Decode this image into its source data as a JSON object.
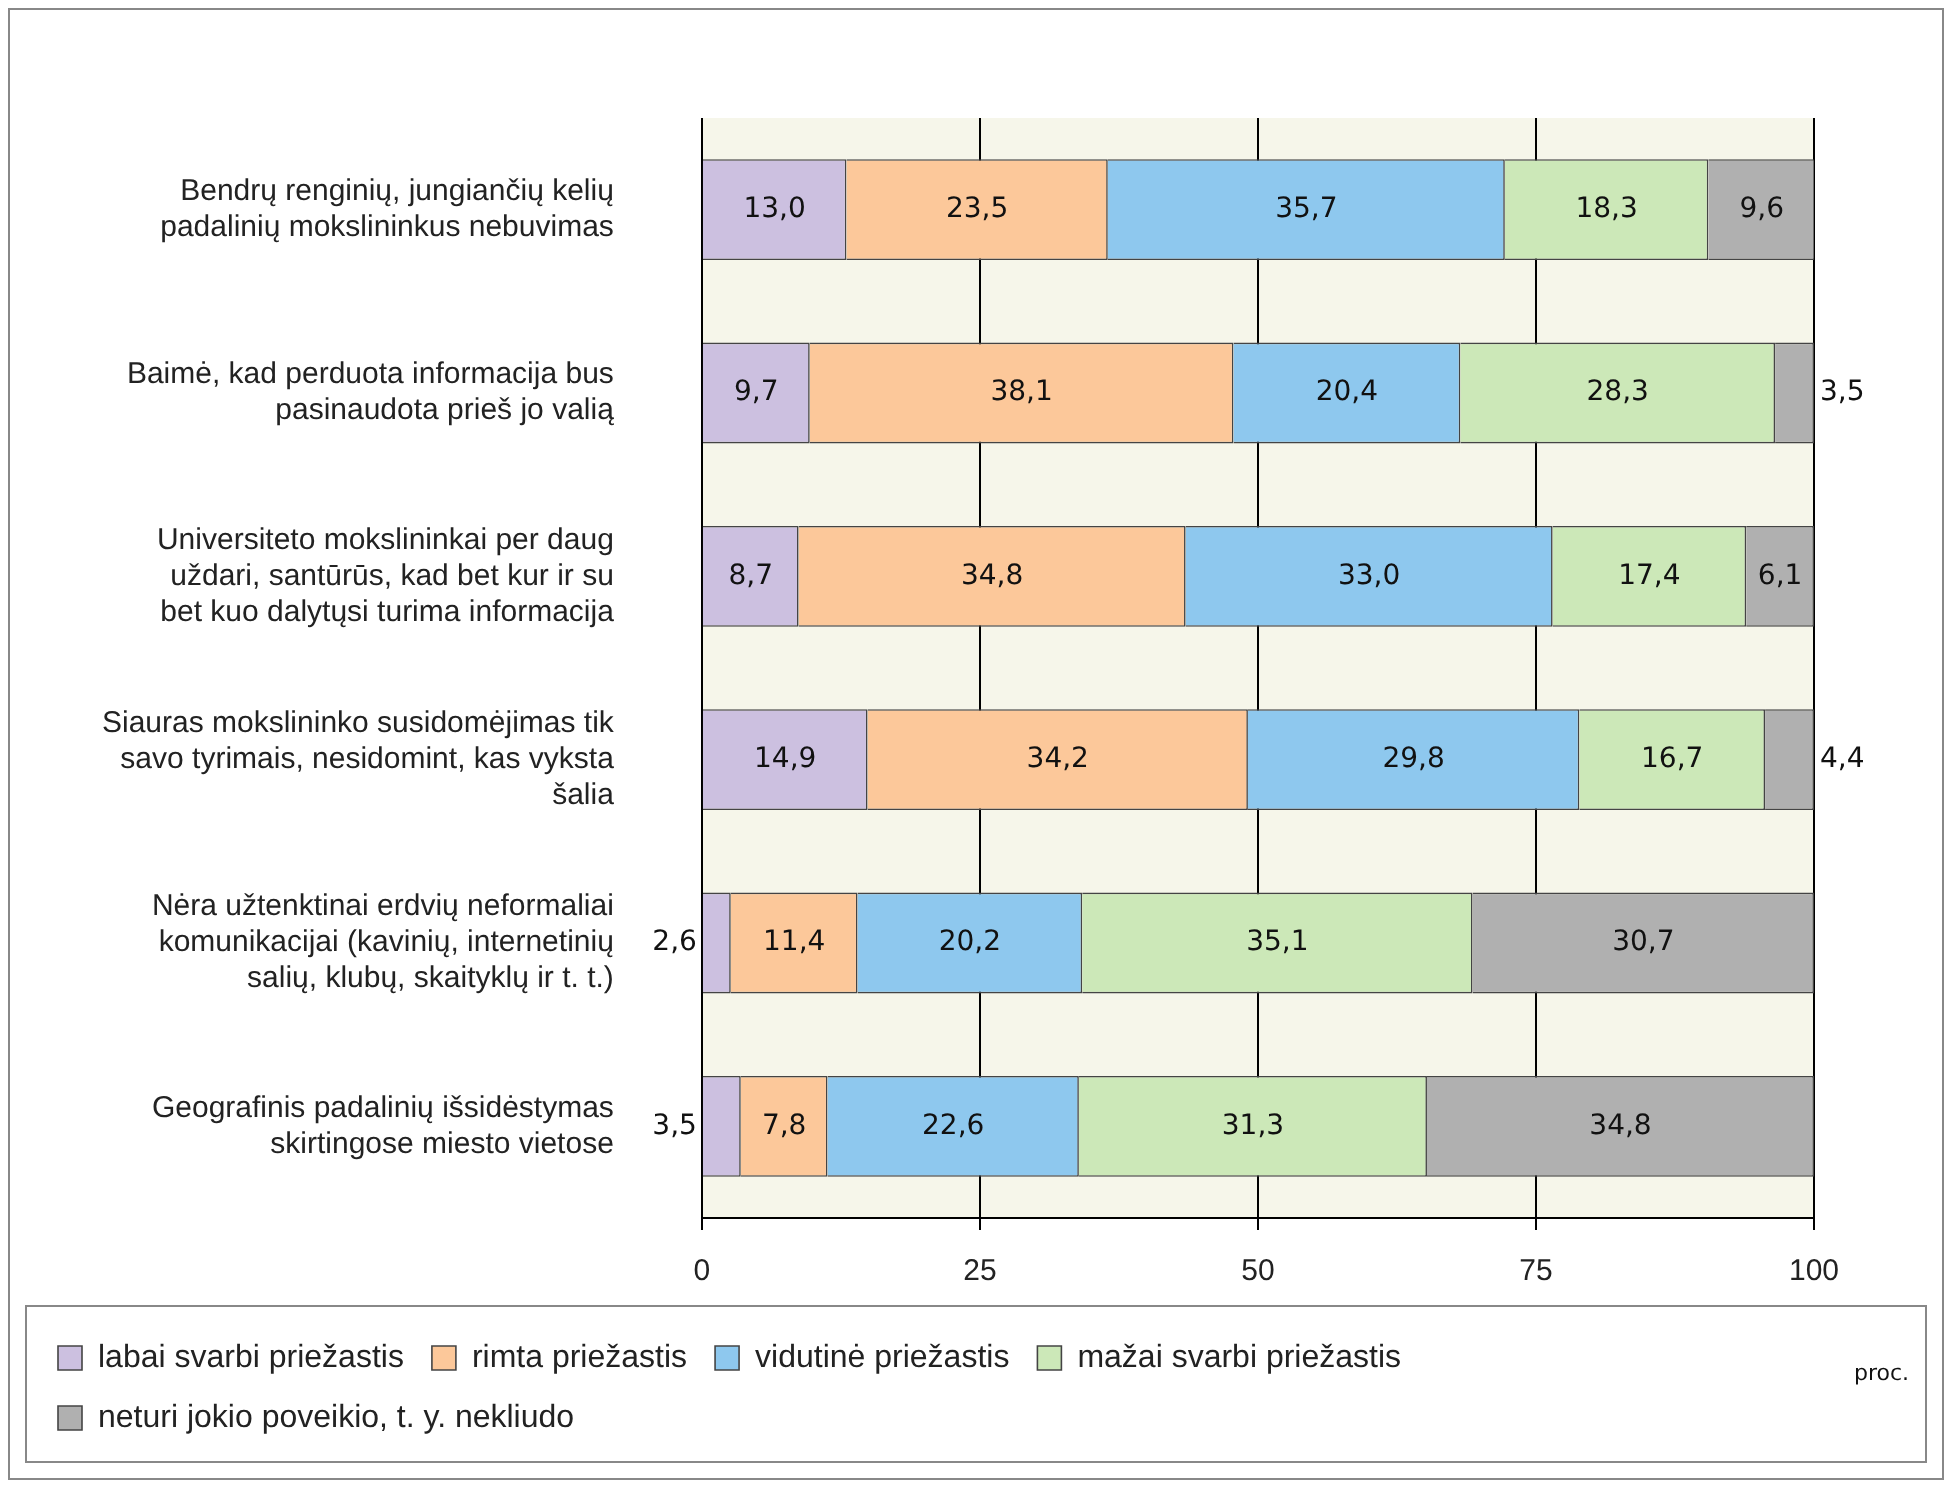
{
  "chart_data": {
    "type": "bar",
    "orientation": "horizontal",
    "stacked": true,
    "xlabel": "proc.",
    "categories": [
      "Bendrų renginių, jungiančių kelių padalinių mokslininkus nebuvimas",
      "Baimė, kad perduota informacija bus pasinaudota prieš jo valią",
      "Universiteto mokslininkai per daug uždari, santūrūs, kad bet kur ir su bet kuo dalytųsi turima informacija",
      "Siauras mokslininko susidomėjimas tik savo tyrimais, nesidomint, kas vyksta šalia",
      "Nėra užtenktinai erdvių neformaliai komunikacijai (kavinių, internetinių salių, klubų, skaityklų ir t. t.)",
      "Geografinis padalinių išsidėstymas skirtingose miesto vietose"
    ],
    "series": [
      {
        "name": "labai svarbi priežastis",
        "color": "#ccc0e0",
        "values": [
          13.0,
          9.7,
          8.7,
          14.9,
          2.6,
          3.5
        ],
        "value_labels": [
          "13,0",
          "9,7",
          "8,7",
          "14,9",
          "2,6",
          "3,5"
        ]
      },
      {
        "name": "rimta priežastis",
        "color": "#fcc89a",
        "values": [
          23.5,
          38.1,
          34.8,
          34.2,
          11.4,
          7.8
        ],
        "value_labels": [
          "23,5",
          "38,1",
          "34,8",
          "34,2",
          "11,4",
          "7,8"
        ]
      },
      {
        "name": "vidutinė priežastis",
        "color": "#8ec8ee",
        "values": [
          35.7,
          20.4,
          33.0,
          29.8,
          20.2,
          22.6
        ],
        "value_labels": [
          "35,7",
          "20,4",
          "33,0",
          "29,8",
          "20,2",
          "22,6"
        ]
      },
      {
        "name": "mažai svarbi priežastis",
        "color": "#cce8b8",
        "values": [
          18.3,
          28.3,
          17.4,
          16.7,
          35.1,
          31.3
        ],
        "value_labels": [
          "18,3",
          "28,3",
          "17,4",
          "16,7",
          "35,1",
          "31,3"
        ]
      },
      {
        "name": "neturi jokio poveikio, t. y. nekliudo",
        "color": "#b0b0b0",
        "values": [
          9.6,
          3.5,
          6.1,
          4.4,
          30.7,
          34.8
        ],
        "value_labels": [
          "9,6",
          "3,5",
          "6,1",
          "4,4",
          "30,7",
          "34,8"
        ]
      }
    ],
    "xlim": [
      0,
      100
    ],
    "xticks": [
      0,
      25,
      50,
      75,
      100
    ],
    "grid": "x",
    "legend": "bottom"
  }
}
